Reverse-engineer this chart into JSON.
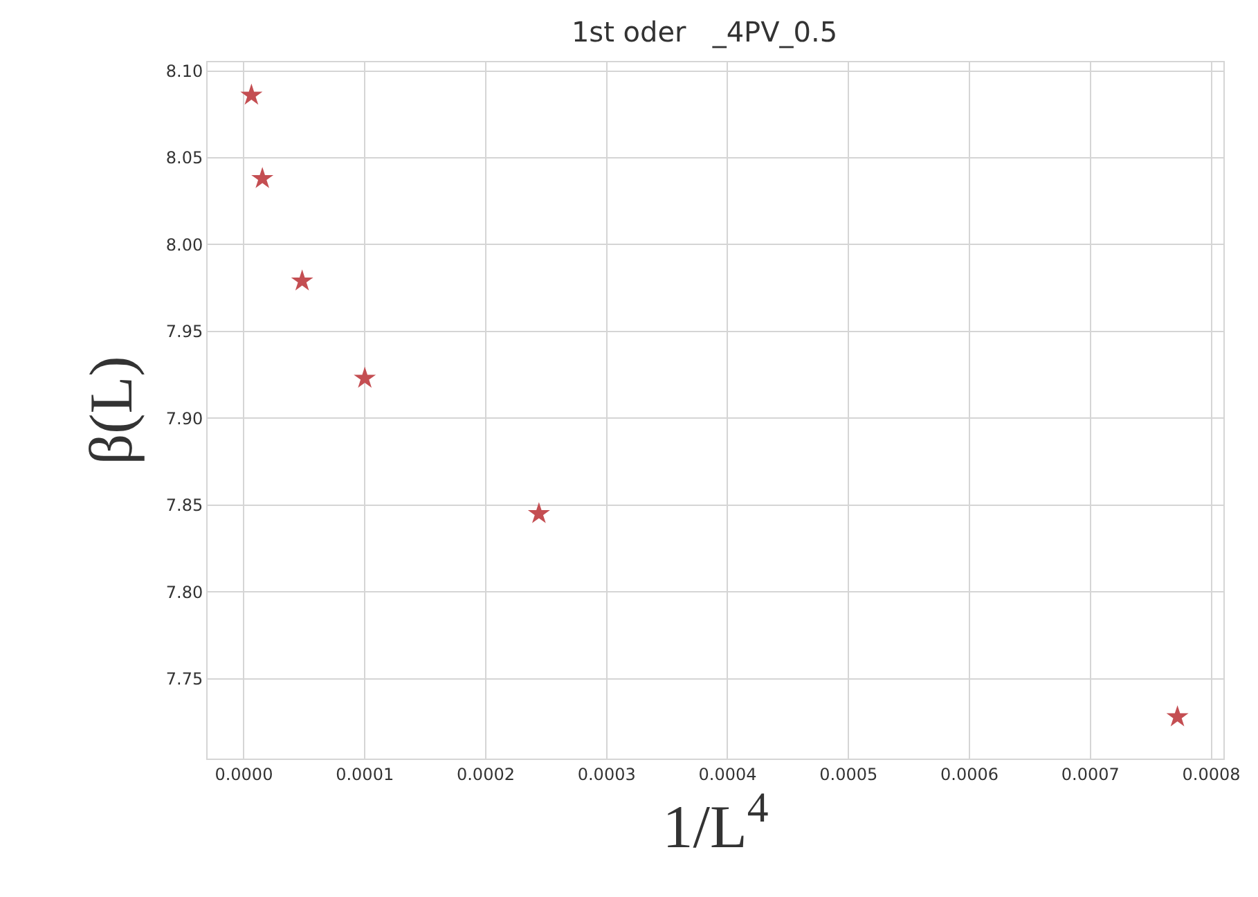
{
  "chart_data": {
    "type": "scatter",
    "title": "1st oder   _4PV_0.5",
    "xlabel": "1/L$^{4}$",
    "ylabel": "β(L)",
    "x": [
      6.25e-06,
      1.53e-05,
      4.82e-05,
      0.0001,
      0.000244,
      0.000772
    ],
    "series": [
      {
        "color": "#c44e52",
        "values": [
          8.086,
          8.038,
          7.979,
          7.923,
          7.845,
          7.728
        ]
      }
    ],
    "marker": "star",
    "grid": true,
    "legend": false,
    "xlim": [
      -3e-05,
      0.00081
    ],
    "ylim": [
      7.704,
      8.105
    ],
    "xticks": [
      {
        "value": 0,
        "label": "0.0000"
      },
      {
        "value": 0.0001,
        "label": "0.0001"
      },
      {
        "value": 0.0002,
        "label": "0.0002"
      },
      {
        "value": 0.0003,
        "label": "0.0003"
      },
      {
        "value": 0.0004,
        "label": "0.0004"
      },
      {
        "value": 0.0005,
        "label": "0.0005"
      },
      {
        "value": 0.0006,
        "label": "0.0006"
      },
      {
        "value": 0.0007,
        "label": "0.0007"
      },
      {
        "value": 0.0008,
        "label": "0.0008"
      }
    ],
    "yticks": [
      {
        "value": 7.75,
        "label": "7.75"
      },
      {
        "value": 7.8,
        "label": "7.80"
      },
      {
        "value": 7.85,
        "label": "7.85"
      },
      {
        "value": 7.9,
        "label": "7.90"
      },
      {
        "value": 7.95,
        "label": "7.95"
      },
      {
        "value": 8.0,
        "label": "8.00"
      },
      {
        "value": 8.05,
        "label": "8.05"
      },
      {
        "value": 8.1,
        "label": "8.10"
      }
    ]
  }
}
